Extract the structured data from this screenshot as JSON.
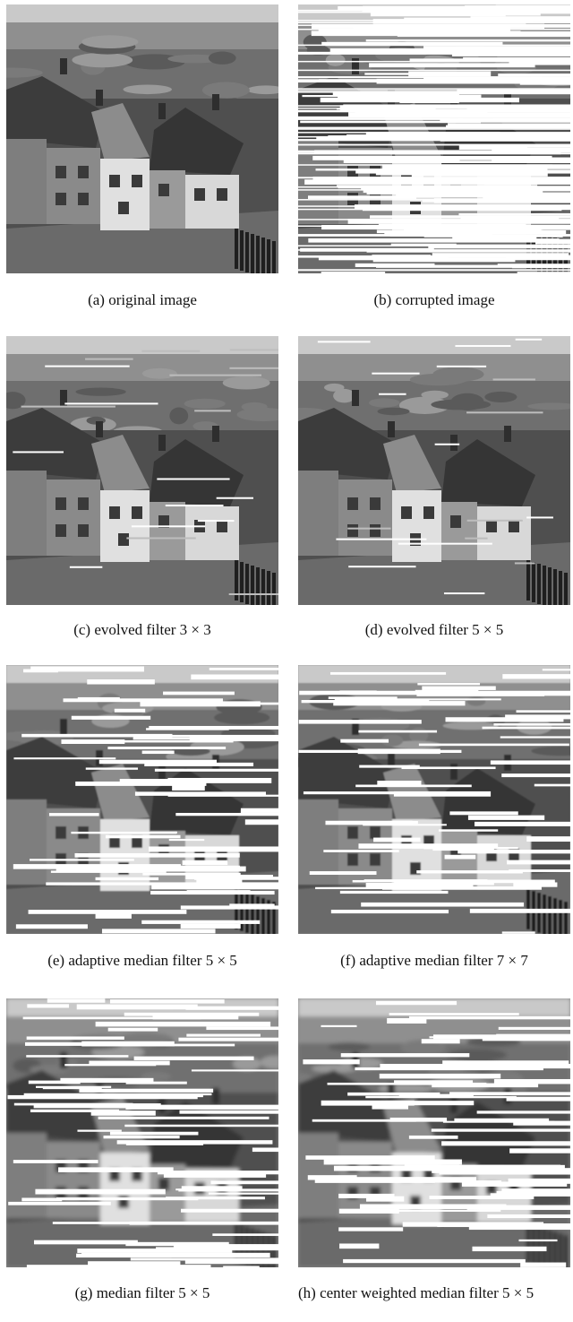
{
  "figure": {
    "panels": [
      {
        "id": "a",
        "label": "(a)",
        "caption": "original image",
        "image": "village-original"
      },
      {
        "id": "b",
        "label": "(b)",
        "caption": "corrupted image",
        "image": "village-corrupted"
      },
      {
        "id": "c",
        "label": "(c)",
        "caption": "evolved filter 3 × 3",
        "image": "village-evolved-3x3"
      },
      {
        "id": "d",
        "label": "(d)",
        "caption": "evolved filter 5 × 5",
        "image": "village-evolved-5x5"
      },
      {
        "id": "e",
        "label": "(e)",
        "caption": "adaptive median filter 5 × 5",
        "image": "village-adaptive-median-5x5"
      },
      {
        "id": "f",
        "label": "(f)",
        "caption": "adaptive median filter 7 × 7",
        "image": "village-adaptive-median-7x7"
      },
      {
        "id": "g",
        "label": "(g)",
        "caption": "median filter 5 × 5",
        "image": "village-median-5x5"
      },
      {
        "id": "h",
        "label": "(h)",
        "caption": "center weighted median filter 5 × 5",
        "image": "village-center-weighted-median-5x5"
      }
    ]
  }
}
